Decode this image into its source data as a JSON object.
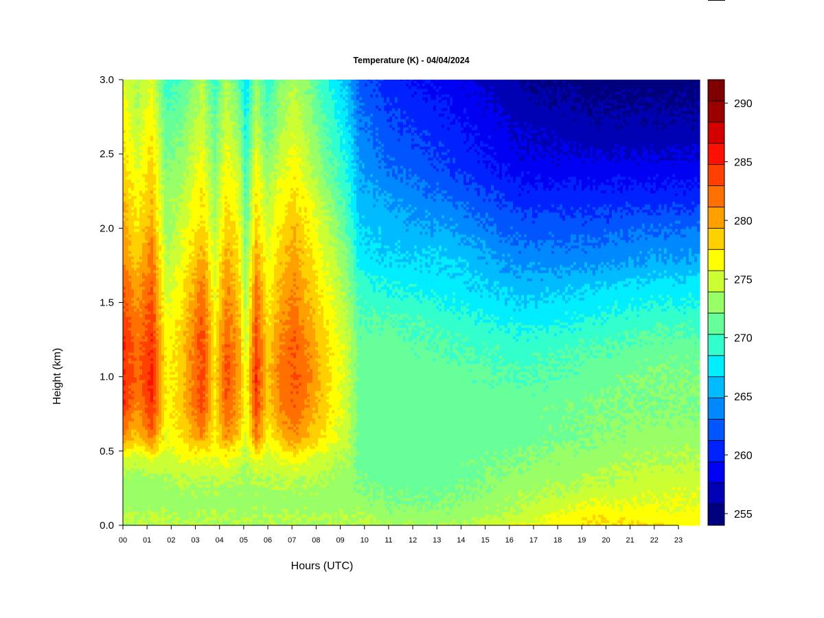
{
  "chart_data": {
    "type": "heatmap",
    "title": "Temperature (K) - 04/04/2024",
    "xlabel": "Hours (UTC)",
    "ylabel": "Height (km)",
    "xlim": [
      0,
      23.9
    ],
    "ylim": [
      0,
      3.0
    ],
    "x_ticks": [
      "00",
      "01",
      "02",
      "03",
      "04",
      "05",
      "06",
      "07",
      "08",
      "09",
      "10",
      "11",
      "12",
      "13",
      "14",
      "15",
      "16",
      "17",
      "18",
      "19",
      "20",
      "21",
      "22",
      "23"
    ],
    "y_ticks": [
      "0.0",
      "0.5",
      "1.0",
      "1.5",
      "2.0",
      "2.5",
      "3.0"
    ],
    "colorbar": {
      "min": 254,
      "max": 292,
      "step": 2,
      "ticks": [
        "255",
        "260",
        "265",
        "270",
        "275",
        "280",
        "285",
        "290"
      ],
      "colors": [
        "#00007F",
        "#0000B4",
        "#0000F2",
        "#0022FF",
        "#0055FF",
        "#0088FF",
        "#00BBFF",
        "#00EEFF",
        "#33FFCC",
        "#66FF99",
        "#99FF66",
        "#CCFF33",
        "#FFFF00",
        "#FFD000",
        "#FFA000",
        "#FF7000",
        "#FF4000",
        "#FF1000",
        "#D20000",
        "#9A0000",
        "#7F0000"
      ]
    },
    "anchor_heights_km": [
      0.0,
      0.05,
      0.15,
      0.3,
      0.45,
      0.6,
      0.8,
      1.0,
      1.2,
      1.4,
      1.6,
      1.8,
      2.0,
      2.2,
      2.4,
      2.6,
      2.8,
      3.0
    ],
    "profiles": [
      {
        "hour": 0.0,
        "temps_K": [
          276,
          277,
          275,
          275,
          278,
          284,
          288,
          288,
          288,
          287,
          286,
          284,
          283,
          282,
          281,
          280,
          279,
          278
        ]
      },
      {
        "hour": 0.6,
        "temps_K": [
          276,
          276,
          275,
          275,
          277,
          281,
          284,
          285,
          285,
          284,
          283,
          281,
          280,
          279,
          278,
          277,
          276,
          276
        ]
      },
      {
        "hour": 1.2,
        "temps_K": [
          276,
          277,
          275,
          275,
          278,
          285,
          288,
          289,
          288,
          287,
          286,
          285,
          283,
          282,
          281,
          280,
          279,
          278
        ]
      },
      {
        "hour": 1.8,
        "temps_K": [
          276,
          276,
          275,
          276,
          277,
          278,
          279,
          279,
          279,
          278,
          277,
          276,
          275,
          275,
          274,
          273,
          272,
          271
        ]
      },
      {
        "hour": 2.4,
        "temps_K": [
          276,
          276,
          275,
          276,
          278,
          280,
          281,
          281,
          281,
          280,
          279,
          278,
          277,
          276,
          275,
          274,
          273,
          272
        ]
      },
      {
        "hour": 3.3,
        "temps_K": [
          276,
          276,
          275,
          276,
          278,
          284,
          287,
          287,
          287,
          286,
          285,
          283,
          281,
          280,
          279,
          278,
          277,
          276
        ]
      },
      {
        "hour": 3.8,
        "temps_K": [
          276,
          276,
          275,
          276,
          278,
          279,
          280,
          280,
          280,
          279,
          278,
          277,
          276,
          275,
          274,
          273,
          272,
          271
        ]
      },
      {
        "hour": 4.3,
        "temps_K": [
          276,
          276,
          275,
          276,
          279,
          284,
          286,
          287,
          286,
          285,
          284,
          283,
          281,
          280,
          279,
          278,
          277,
          276
        ]
      },
      {
        "hour": 4.8,
        "temps_K": [
          276,
          276,
          275,
          276,
          277,
          281,
          283,
          283,
          283,
          282,
          281,
          280,
          279,
          278,
          277,
          275,
          274,
          272
        ]
      },
      {
        "hour": 5.1,
        "temps_K": [
          275,
          276,
          275,
          275,
          276,
          277,
          278,
          278,
          277,
          276,
          275,
          274,
          273,
          272,
          271,
          270,
          269,
          268
        ]
      },
      {
        "hour": 5.5,
        "temps_K": [
          276,
          276,
          275,
          276,
          279,
          285,
          287,
          288,
          287,
          286,
          285,
          283,
          281,
          280,
          279,
          277,
          276,
          275
        ]
      },
      {
        "hour": 6.0,
        "temps_K": [
          276,
          276,
          275,
          276,
          277,
          279,
          281,
          281,
          281,
          280,
          279,
          278,
          277,
          276,
          275,
          273,
          272,
          270
        ]
      },
      {
        "hour": 6.5,
        "temps_K": [
          276,
          276,
          275,
          276,
          278,
          282,
          284,
          285,
          284,
          283,
          282,
          281,
          280,
          279,
          277,
          276,
          275,
          274
        ]
      },
      {
        "hour": 7.1,
        "temps_K": [
          276,
          276,
          275,
          276,
          279,
          284,
          286,
          286,
          286,
          285,
          284,
          283,
          282,
          280,
          279,
          278,
          277,
          276
        ]
      },
      {
        "hour": 7.6,
        "temps_K": [
          276,
          276,
          275,
          276,
          278,
          282,
          284,
          285,
          284,
          283,
          282,
          281,
          280,
          279,
          277,
          276,
          275,
          274
        ]
      },
      {
        "hour": 8.3,
        "temps_K": [
          276,
          276,
          275,
          276,
          277,
          280,
          281,
          281,
          281,
          280,
          279,
          278,
          277,
          276,
          274,
          273,
          272,
          271
        ]
      },
      {
        "hour": 8.8,
        "temps_K": [
          276,
          276,
          275,
          275,
          276,
          278,
          279,
          279,
          279,
          278,
          277,
          276,
          275,
          273,
          272,
          271,
          270,
          269
        ]
      },
      {
        "hour": 9.3,
        "temps_K": [
          276,
          276,
          275,
          275,
          276,
          277,
          277,
          277,
          277,
          276,
          275,
          274,
          272,
          271,
          270,
          269,
          268,
          267
        ]
      },
      {
        "hour": 9.8,
        "temps_K": [
          276,
          276,
          275,
          274,
          273,
          273,
          273,
          273,
          273,
          272,
          271,
          269,
          268,
          267,
          266,
          265,
          264,
          263
        ]
      },
      {
        "hour": 11.0,
        "temps_K": [
          276,
          275,
          274,
          273,
          273,
          273,
          273,
          273,
          273,
          272,
          270,
          268,
          267,
          266,
          264,
          263,
          262,
          261
        ]
      },
      {
        "hour": 13.5,
        "temps_K": [
          276,
          275,
          274,
          273,
          273,
          273,
          273,
          273,
          272,
          271,
          269,
          268,
          266,
          264,
          262,
          261,
          260,
          259
        ]
      },
      {
        "hour": 16.5,
        "temps_K": [
          278,
          277,
          276,
          275,
          274,
          273,
          273,
          272,
          271,
          269,
          267,
          265,
          263,
          261,
          259,
          258,
          257,
          256
        ]
      },
      {
        "hour": 19.5,
        "temps_K": [
          280,
          280,
          278,
          276,
          275,
          274,
          274,
          273,
          272,
          270,
          268,
          265,
          263,
          261,
          259,
          257,
          256,
          255
        ]
      },
      {
        "hour": 22.0,
        "temps_K": [
          280,
          279,
          278,
          277,
          276,
          275,
          274,
          274,
          273,
          271,
          269,
          266,
          264,
          261,
          259,
          257,
          256,
          255
        ]
      },
      {
        "hour": 23.9,
        "temps_K": [
          279,
          279,
          278,
          277,
          276,
          275,
          274,
          274,
          273,
          271,
          269,
          266,
          264,
          261,
          259,
          257,
          256,
          255
        ]
      }
    ]
  }
}
